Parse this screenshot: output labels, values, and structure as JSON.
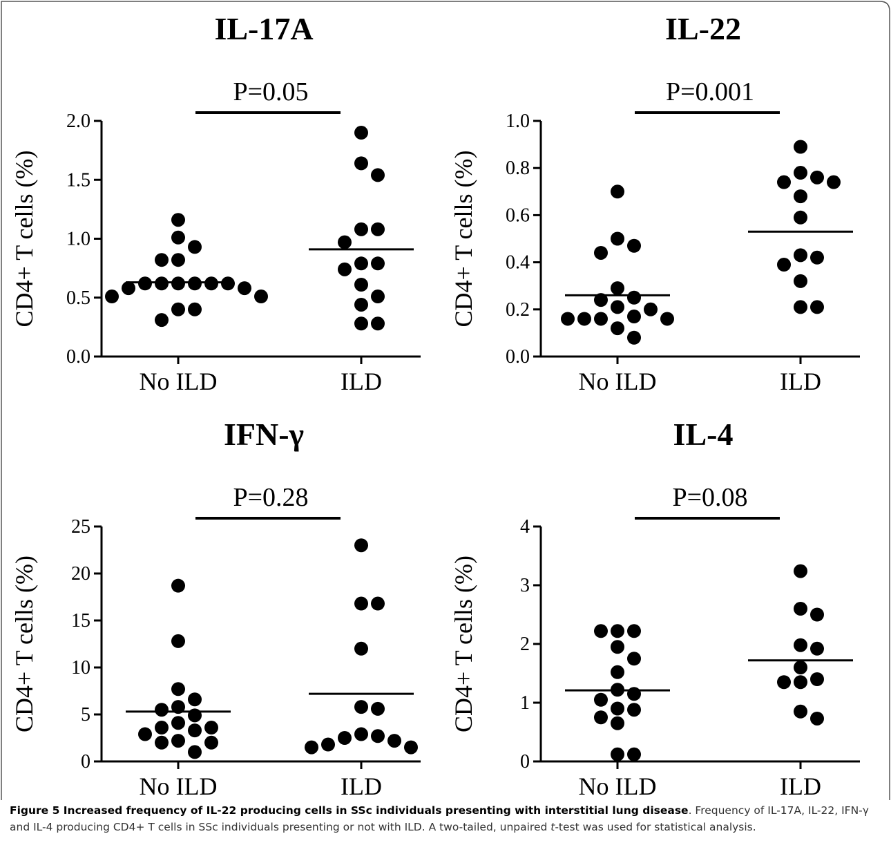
{
  "chart_data": [
    {
      "type": "strip",
      "title": "IL-17A",
      "ylabel": "CD4+ T cells (%)",
      "annotation": "P=0.05",
      "categories": [
        "No ILD",
        "ILD"
      ],
      "values": [
        [
          1.16,
          1.01,
          0.93,
          0.82,
          0.82,
          0.62,
          0.62,
          0.62,
          0.62,
          0.62,
          0.62,
          0.58,
          0.58,
          0.51,
          0.51,
          0.4,
          0.4,
          0.31
        ],
        [
          1.9,
          1.64,
          1.54,
          1.08,
          1.08,
          0.97,
          0.79,
          0.79,
          0.74,
          0.61,
          0.51,
          0.44,
          0.28,
          0.28
        ]
      ],
      "means": [
        0.63,
        0.91
      ],
      "ylim": [
        0,
        2
      ],
      "yticks": [
        {
          "value": 0,
          "label": "0.0"
        },
        {
          "value": 0.5,
          "label": "0.5"
        },
        {
          "value": 1,
          "label": "1.0"
        },
        {
          "value": 1.5,
          "label": "1.5"
        },
        {
          "value": 2,
          "label": "2.0"
        }
      ]
    },
    {
      "type": "strip",
      "title": "IL-22",
      "ylabel": "CD4+ T cells (%)",
      "annotation": "P=0.001",
      "categories": [
        "No ILD",
        "ILD"
      ],
      "values": [
        [
          0.7,
          0.5,
          0.47,
          0.44,
          0.29,
          0.25,
          0.24,
          0.21,
          0.2,
          0.17,
          0.16,
          0.16,
          0.16,
          0.16,
          0.12,
          0.08
        ],
        [
          0.89,
          0.78,
          0.76,
          0.74,
          0.74,
          0.68,
          0.59,
          0.43,
          0.42,
          0.39,
          0.32,
          0.21,
          0.21
        ]
      ],
      "means": [
        0.26,
        0.53
      ],
      "ylim": [
        0,
        1
      ],
      "yticks": [
        {
          "value": 0,
          "label": "0.0"
        },
        {
          "value": 0.2,
          "label": "0.2"
        },
        {
          "value": 0.4,
          "label": "0.4"
        },
        {
          "value": 0.6,
          "label": "0.6"
        },
        {
          "value": 0.8,
          "label": "0.8"
        },
        {
          "value": 1,
          "label": "1.0"
        }
      ]
    },
    {
      "type": "strip",
      "title": "IFN-γ",
      "ylabel": "CD4+ T cells (%)",
      "annotation": "P=0.28",
      "categories": [
        "No ILD",
        "ILD"
      ],
      "values": [
        [
          18.7,
          12.8,
          7.7,
          6.6,
          5.8,
          5.5,
          4.9,
          4.1,
          3.6,
          3.6,
          3.3,
          2.9,
          2.2,
          2.0,
          2.0,
          1.0
        ],
        [
          23.0,
          16.8,
          16.8,
          12.0,
          5.8,
          5.6,
          2.9,
          2.7,
          2.5,
          2.2,
          1.8,
          1.5,
          1.5
        ]
      ],
      "means": [
        5.3,
        7.2
      ],
      "ylim": [
        0,
        25
      ],
      "yticks": [
        0,
        5,
        10,
        15,
        20,
        25
      ]
    },
    {
      "type": "strip",
      "title": "IL-4",
      "ylabel": "CD4+ T cells (%)",
      "annotation": "P=0.08",
      "categories": [
        "No ILD",
        "ILD"
      ],
      "values": [
        [
          2.22,
          2.22,
          2.22,
          1.95,
          1.75,
          1.52,
          1.22,
          1.15,
          1.05,
          0.9,
          0.88,
          0.75,
          0.65,
          0.12,
          0.12
        ],
        [
          3.24,
          2.6,
          2.5,
          1.98,
          1.92,
          1.6,
          1.4,
          1.35,
          1.35,
          0.85,
          0.73
        ]
      ],
      "means": [
        1.21,
        1.72
      ],
      "ylim": [
        0,
        4
      ],
      "yticks": [
        0,
        1,
        2,
        3,
        4
      ]
    }
  ],
  "caption": {
    "title": "Figure 5 Increased frequency of IL-22 producing cells in SSc individuals presenting with interstitial lung disease",
    "text": ". Frequency of IL-17A, IL-22, IFN-γ and IL-4 producing CD4+ T cells in SSc individuals presenting or not with ILD. A two-tailed, unpaired ",
    "italic": "t",
    "text_end": "-test was used for statistical analysis."
  }
}
